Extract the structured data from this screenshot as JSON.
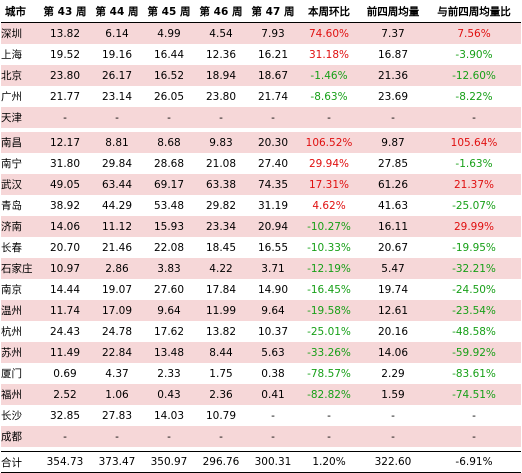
{
  "header": [
    "城市",
    "第 43 周",
    "第 44 周",
    "第 45 周",
    "第 46 周",
    "第 47 周",
    "本周环比",
    "前四周均量",
    "与前四周均量比"
  ],
  "colors": {
    "up": "#e01010",
    "down": "#18a018",
    "highlight": "#f6d7d8"
  },
  "rows": [
    {
      "city": "深圳",
      "w43": "13.82",
      "w44": "6.14",
      "w45": "4.99",
      "w46": "4.54",
      "w47": "7.93",
      "wow": "74.60%",
      "avg4": "7.37",
      "vs4": "7.56%",
      "hl": true
    },
    {
      "city": "上海",
      "w43": "19.52",
      "w44": "19.16",
      "w45": "16.44",
      "w46": "12.36",
      "w47": "16.21",
      "wow": "31.18%",
      "avg4": "16.87",
      "vs4": "-3.90%",
      "hl": false
    },
    {
      "city": "北京",
      "w43": "23.80",
      "w44": "26.17",
      "w45": "16.52",
      "w46": "18.94",
      "w47": "18.67",
      "wow": "-1.46%",
      "avg4": "21.36",
      "vs4": "-12.60%",
      "hl": true
    },
    {
      "city": "广州",
      "w43": "21.77",
      "w44": "23.14",
      "w45": "26.05",
      "w46": "23.80",
      "w47": "21.74",
      "wow": "-8.63%",
      "avg4": "23.69",
      "vs4": "-8.22%",
      "hl": false
    },
    {
      "city": "天津",
      "w43": "-",
      "w44": "-",
      "w45": "-",
      "w46": "-",
      "w47": "-",
      "wow": "-",
      "avg4": "-",
      "vs4": "-",
      "hl": true
    },
    {
      "gap": true
    },
    {
      "city": "南昌",
      "w43": "12.17",
      "w44": "8.81",
      "w45": "8.68",
      "w46": "9.83",
      "w47": "20.30",
      "wow": "106.52%",
      "avg4": "9.87",
      "vs4": "105.64%",
      "hl": true
    },
    {
      "city": "南宁",
      "w43": "31.80",
      "w44": "29.84",
      "w45": "28.68",
      "w46": "21.08",
      "w47": "27.40",
      "wow": "29.94%",
      "avg4": "27.85",
      "vs4": "-1.63%",
      "hl": false
    },
    {
      "city": "武汉",
      "w43": "49.05",
      "w44": "63.44",
      "w45": "69.17",
      "w46": "63.38",
      "w47": "74.35",
      "wow": "17.31%",
      "avg4": "61.26",
      "vs4": "21.37%",
      "hl": true
    },
    {
      "city": "青岛",
      "w43": "38.92",
      "w44": "44.29",
      "w45": "53.48",
      "w46": "29.82",
      "w47": "31.19",
      "wow": "4.62%",
      "avg4": "41.63",
      "vs4": "-25.07%",
      "hl": false
    },
    {
      "city": "济南",
      "w43": "14.06",
      "w44": "11.12",
      "w45": "15.93",
      "w46": "23.34",
      "w47": "20.94",
      "wow": "-10.27%",
      "avg4": "16.11",
      "vs4": "29.99%",
      "hl": true
    },
    {
      "city": "长春",
      "w43": "20.70",
      "w44": "21.46",
      "w45": "22.08",
      "w46": "18.45",
      "w47": "16.55",
      "wow": "-10.33%",
      "avg4": "20.67",
      "vs4": "-19.95%",
      "hl": false
    },
    {
      "city": "石家庄",
      "w43": "10.97",
      "w44": "2.86",
      "w45": "3.83",
      "w46": "4.22",
      "w47": "3.71",
      "wow": "-12.19%",
      "avg4": "5.47",
      "vs4": "-32.21%",
      "hl": true
    },
    {
      "city": "南京",
      "w43": "14.44",
      "w44": "19.07",
      "w45": "27.60",
      "w46": "17.84",
      "w47": "14.90",
      "wow": "-16.45%",
      "avg4": "19.74",
      "vs4": "-24.50%",
      "hl": false
    },
    {
      "city": "温州",
      "w43": "11.74",
      "w44": "17.09",
      "w45": "9.64",
      "w46": "11.99",
      "w47": "9.64",
      "wow": "-19.58%",
      "avg4": "12.61",
      "vs4": "-23.54%",
      "hl": true
    },
    {
      "city": "杭州",
      "w43": "24.43",
      "w44": "24.78",
      "w45": "17.62",
      "w46": "13.82",
      "w47": "10.37",
      "wow": "-25.01%",
      "avg4": "20.16",
      "vs4": "-48.58%",
      "hl": false
    },
    {
      "city": "苏州",
      "w43": "11.49",
      "w44": "22.84",
      "w45": "13.48",
      "w46": "8.44",
      "w47": "5.63",
      "wow": "-33.26%",
      "avg4": "14.06",
      "vs4": "-59.92%",
      "hl": true
    },
    {
      "city": "厦门",
      "w43": "0.69",
      "w44": "4.37",
      "w45": "2.33",
      "w46": "1.75",
      "w47": "0.38",
      "wow": "-78.57%",
      "avg4": "2.29",
      "vs4": "-83.61%",
      "hl": false
    },
    {
      "city": "福州",
      "w43": "2.52",
      "w44": "1.06",
      "w45": "0.43",
      "w46": "2.36",
      "w47": "0.41",
      "wow": "-82.82%",
      "avg4": "1.59",
      "vs4": "-74.51%",
      "hl": true
    },
    {
      "city": "长沙",
      "w43": "32.85",
      "w44": "27.83",
      "w45": "14.03",
      "w46": "10.79",
      "w47": "-",
      "wow": "-",
      "avg4": "-",
      "vs4": "-",
      "hl": false
    },
    {
      "city": "成都",
      "w43": "-",
      "w44": "-",
      "w45": "-",
      "w46": "-",
      "w47": "-",
      "wow": "-",
      "avg4": "-",
      "vs4": "-",
      "hl": true
    },
    {
      "gap": true
    }
  ],
  "total": {
    "city": "合计",
    "w43": "354.73",
    "w44": "373.47",
    "w45": "350.97",
    "w46": "296.76",
    "w47": "300.31",
    "wow": "1.20%",
    "avg4": "322.60",
    "vs4": "-6.91%"
  }
}
